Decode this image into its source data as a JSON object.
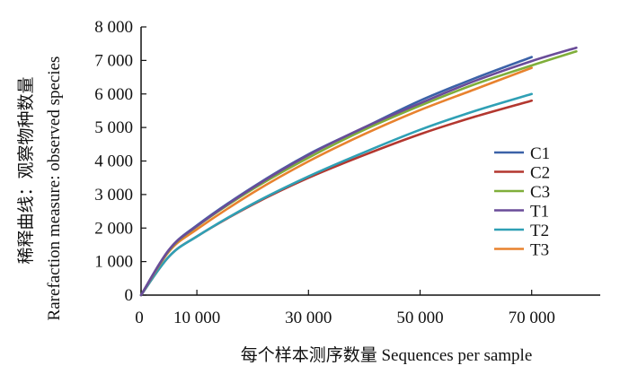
{
  "chart_data": {
    "type": "line",
    "xlabel": "每个样本测序数量  Sequences per sample",
    "ylabel_cn": "稀释曲线：观察物种数量",
    "ylabel_en": "Rarefaction measure: observed species",
    "xlim": [
      0,
      80000
    ],
    "ylim": [
      0,
      8000
    ],
    "x_ticks": [
      {
        "value": 0,
        "label": "0"
      },
      {
        "value": 10000,
        "label": "10 000"
      },
      {
        "value": 30000,
        "label": "30 000"
      },
      {
        "value": 50000,
        "label": "50 000"
      },
      {
        "value": 70000,
        "label": "70 000"
      }
    ],
    "y_ticks": [
      {
        "value": 0,
        "label": "0"
      },
      {
        "value": 1000,
        "label": "1 000"
      },
      {
        "value": 2000,
        "label": "2 000"
      },
      {
        "value": 3000,
        "label": "3 000"
      },
      {
        "value": 4000,
        "label": "4 000"
      },
      {
        "value": 5000,
        "label": "5 000"
      },
      {
        "value": 6000,
        "label": "6 000"
      },
      {
        "value": 7000,
        "label": "7 000"
      },
      {
        "value": 8000,
        "label": "8 000"
      }
    ],
    "grid": false,
    "legend_position": "right",
    "series": [
      {
        "name": "C1",
        "color": "#3b62a8",
        "x": [
          0,
          5000,
          10000,
          20000,
          30000,
          40000,
          50000,
          60000,
          70000
        ],
        "y": [
          0,
          1350,
          2080,
          3220,
          4200,
          5000,
          5800,
          6480,
          7100
        ]
      },
      {
        "name": "C2",
        "color": "#b3372f",
        "x": [
          0,
          5000,
          10000,
          20000,
          30000,
          40000,
          50000,
          60000,
          70000
        ],
        "y": [
          0,
          1150,
          1750,
          2700,
          3500,
          4180,
          4800,
          5330,
          5800
        ]
      },
      {
        "name": "C3",
        "color": "#7fae3a",
        "x": [
          0,
          5000,
          10000,
          20000,
          30000,
          40000,
          50000,
          60000,
          70000,
          78000
        ],
        "y": [
          0,
          1330,
          2050,
          3160,
          4100,
          4930,
          5650,
          6300,
          6850,
          7270
        ]
      },
      {
        "name": "T1",
        "color": "#6a4c99",
        "x": [
          0,
          5000,
          10000,
          20000,
          30000,
          40000,
          50000,
          60000,
          70000,
          78000
        ],
        "y": [
          0,
          1350,
          2060,
          3200,
          4180,
          5000,
          5720,
          6400,
          6980,
          7380
        ]
      },
      {
        "name": "T2",
        "color": "#2fa0b5",
        "x": [
          0,
          5000,
          10000,
          20000,
          30000,
          40000,
          50000,
          60000,
          70000
        ],
        "y": [
          0,
          1150,
          1750,
          2720,
          3540,
          4260,
          4930,
          5500,
          6000
        ]
      },
      {
        "name": "T3",
        "color": "#e8822e",
        "x": [
          0,
          5000,
          10000,
          20000,
          30000,
          40000,
          50000,
          60000,
          70000
        ],
        "y": [
          0,
          1300,
          1960,
          3050,
          3990,
          4800,
          5520,
          6150,
          6780
        ]
      }
    ]
  }
}
